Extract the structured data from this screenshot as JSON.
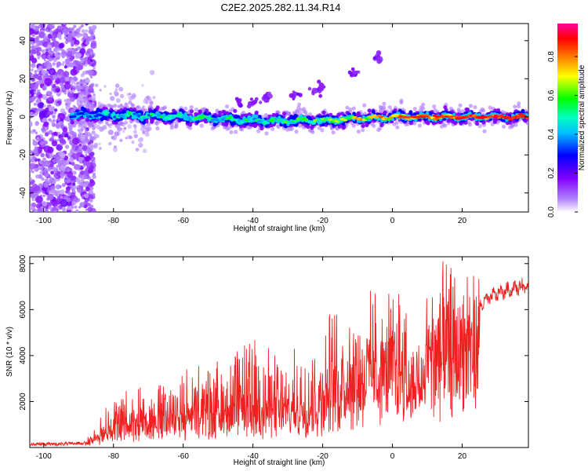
{
  "title": "C2E2.2025.282.11.34.R14",
  "chart_data": [
    {
      "type": "heatmap",
      "xlabel": "Height of straight line (km)",
      "ylabel": "Frequency (Hz)",
      "xlim": [
        -104,
        39
      ],
      "ylim": [
        -50,
        49
      ],
      "xticks": [
        -100,
        -80,
        -60,
        -40,
        -20,
        0,
        20
      ],
      "yticks": [
        -40,
        -20,
        0,
        20,
        40
      ],
      "colorbar": {
        "label": "Normalized spectral amplitude",
        "range": [
          0.0,
          0.97
        ],
        "ticks": [
          0.0,
          0.2,
          0.4,
          0.6,
          0.8
        ],
        "colormap": [
          "#ffffff",
          "#8000ff",
          "#0000ff",
          "#00ffff",
          "#00ff00",
          "#ffff00",
          "#ff8000",
          "#ff0000",
          "#ff00a0"
        ]
      },
      "ridge": {
        "description_points": [
          {
            "x": -92,
            "y": 1,
            "amp": 0.3
          },
          {
            "x": -80,
            "y": 1,
            "amp": 0.45
          },
          {
            "x": -60,
            "y": 0,
            "amp": 0.5
          },
          {
            "x": -40,
            "y": -2,
            "amp": 0.5
          },
          {
            "x": -20,
            "y": -2,
            "amp": 0.55
          },
          {
            "x": -10,
            "y": -1,
            "amp": 0.7
          },
          {
            "x": 0,
            "y": 0,
            "amp": 0.75
          },
          {
            "x": 20,
            "y": 0,
            "amp": 0.85
          },
          {
            "x": 38,
            "y": 0,
            "amp": 0.9
          }
        ],
        "harmonic_points": [
          {
            "x": -44,
            "y": 8
          },
          {
            "x": -40,
            "y": 8
          },
          {
            "x": -36,
            "y": 10
          },
          {
            "x": -28,
            "y": 11
          },
          {
            "x": -22,
            "y": 13
          },
          {
            "x": -20,
            "y": 16
          },
          {
            "x": -11,
            "y": 23
          },
          {
            "x": -4,
            "y": 31
          }
        ]
      }
    },
    {
      "type": "line",
      "xlabel": "Height of straight line (km)",
      "ylabel": "SNR (10 * v/v)",
      "xlim": [
        -104,
        39
      ],
      "ylim": [
        0,
        8300
      ],
      "xticks": [
        -100,
        -80,
        -60,
        -40,
        -20,
        0,
        20
      ],
      "yticks": [
        2000,
        4000,
        6000,
        8000
      ],
      "color": "#ee2020",
      "trend": [
        {
          "x": -104,
          "y": 150
        },
        {
          "x": -95,
          "y": 150
        },
        {
          "x": -88,
          "y": 200
        },
        {
          "x": -84,
          "y": 500
        },
        {
          "x": -80,
          "y": 900
        },
        {
          "x": -70,
          "y": 1200
        },
        {
          "x": -60,
          "y": 1500
        },
        {
          "x": -50,
          "y": 1600
        },
        {
          "x": -40,
          "y": 1700
        },
        {
          "x": -30,
          "y": 1700
        },
        {
          "x": -21,
          "y": 1750
        },
        {
          "x": -18,
          "y": 2600
        },
        {
          "x": -12,
          "y": 3500
        },
        {
          "x": -5,
          "y": 4000
        },
        {
          "x": 0,
          "y": 4700
        },
        {
          "x": 5,
          "y": 5000
        },
        {
          "x": 10,
          "y": 5000
        },
        {
          "x": 15,
          "y": 5200
        },
        {
          "x": 20,
          "y": 5600
        },
        {
          "x": 25,
          "y": 6200
        },
        {
          "x": 30,
          "y": 6700
        },
        {
          "x": 39,
          "y": 7100
        }
      ],
      "envelope": [
        {
          "x": -104,
          "y": 250
        },
        {
          "x": -88,
          "y": 300
        },
        {
          "x": -80,
          "y": 2500
        },
        {
          "x": -60,
          "y": 3500
        },
        {
          "x": -50,
          "y": 4000
        },
        {
          "x": -40,
          "y": 5000
        },
        {
          "x": -30,
          "y": 4000
        },
        {
          "x": -25,
          "y": 4600
        },
        {
          "x": -20,
          "y": 6000
        },
        {
          "x": -15,
          "y": 6500
        },
        {
          "x": -10,
          "y": 6500
        },
        {
          "x": -5,
          "y": 6800
        },
        {
          "x": 0,
          "y": 6500
        },
        {
          "x": 5,
          "y": 7000
        },
        {
          "x": 8,
          "y": 8200
        },
        {
          "x": 15,
          "y": 8000
        },
        {
          "x": 17,
          "y": 8300
        },
        {
          "x": 25,
          "y": 7500
        },
        {
          "x": 39,
          "y": 7600
        }
      ]
    }
  ]
}
